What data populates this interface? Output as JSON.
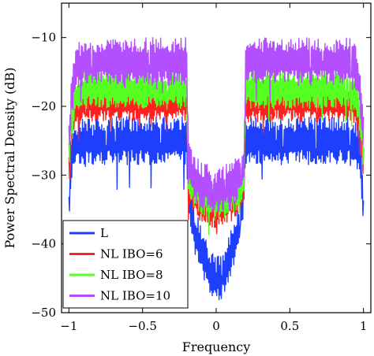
{
  "chart_data": {
    "type": "line",
    "title": "",
    "xlabel": "Frequency",
    "ylabel": "Power Spectral Density (dB)",
    "xlim": [
      -1.0,
      1.0
    ],
    "ylim": [
      -50,
      -5
    ],
    "xticks": [
      -1,
      -0.5,
      0,
      0.5,
      1
    ],
    "xtick_labels": [
      "−1",
      "−0.5",
      "0",
      "0.5",
      "1"
    ],
    "yticks": [
      -50,
      -40,
      -30,
      -20,
      -10
    ],
    "ytick_labels": [
      "−50",
      "−40",
      "−30",
      "−20",
      "−10"
    ],
    "grid": false,
    "legend_position": "bottom-left",
    "x": [
      -1.0,
      -0.98,
      -0.95,
      -0.9,
      -0.8,
      -0.6,
      -0.4,
      -0.25,
      -0.2,
      -0.19,
      -0.15,
      -0.1,
      -0.05,
      0.0,
      0.05,
      0.1,
      0.15,
      0.19,
      0.2,
      0.25,
      0.4,
      0.6,
      0.8,
      0.9,
      0.95,
      0.98,
      1.0
    ],
    "series": [
      {
        "name": "L",
        "color": "#1f3fff",
        "values": [
          -35,
          -27,
          -25.5,
          -25,
          -25,
          -25,
          -25,
          -25,
          -25,
          -32,
          -38,
          -41,
          -44,
          -45.5,
          -44,
          -41,
          -38,
          -32,
          -25,
          -25,
          -25,
          -25,
          -25,
          -25,
          -25.5,
          -27,
          -35
        ]
      },
      {
        "name": "NL IBO=6",
        "color": "#ff2020",
        "values": [
          -29,
          -23,
          -20,
          -19.5,
          -19.5,
          -19.5,
          -19.5,
          -19.5,
          -19.5,
          -31,
          -33,
          -34,
          -34.5,
          -35,
          -34.5,
          -34,
          -33,
          -31,
          -19.5,
          -19.5,
          -19.5,
          -19.5,
          -19.5,
          -19.5,
          -20,
          -23,
          -29
        ]
      },
      {
        "name": "NL IBO=8",
        "color": "#55ff22",
        "values": [
          -27,
          -21.5,
          -18.5,
          -17.5,
          -17.5,
          -17.5,
          -17.5,
          -17.5,
          -17.5,
          -30,
          -32,
          -33,
          -33.5,
          -34,
          -33.5,
          -33,
          -32,
          -30,
          -17.5,
          -17.5,
          -17.5,
          -17.5,
          -17.5,
          -17.5,
          -18.5,
          -21.5,
          -27
        ]
      },
      {
        "name": "NL IBO=10",
        "color": "#b44fff",
        "values": [
          -25,
          -18,
          -14.5,
          -13.5,
          -13.5,
          -13.5,
          -13.5,
          -13.5,
          -13.5,
          -28,
          -30.5,
          -31.5,
          -32,
          -32.5,
          -32,
          -31.5,
          -30.5,
          -28,
          -13.5,
          -13.5,
          -13.5,
          -13.5,
          -13.5,
          -13.5,
          -14.5,
          -18,
          -25
        ]
      }
    ],
    "ripple_amplitude_db": [
      3.5,
      2.8,
      2.8,
      3.5
    ],
    "legend": [
      "L",
      "NL IBO=6",
      "NL IBO=8",
      "NL IBO=10"
    ]
  }
}
